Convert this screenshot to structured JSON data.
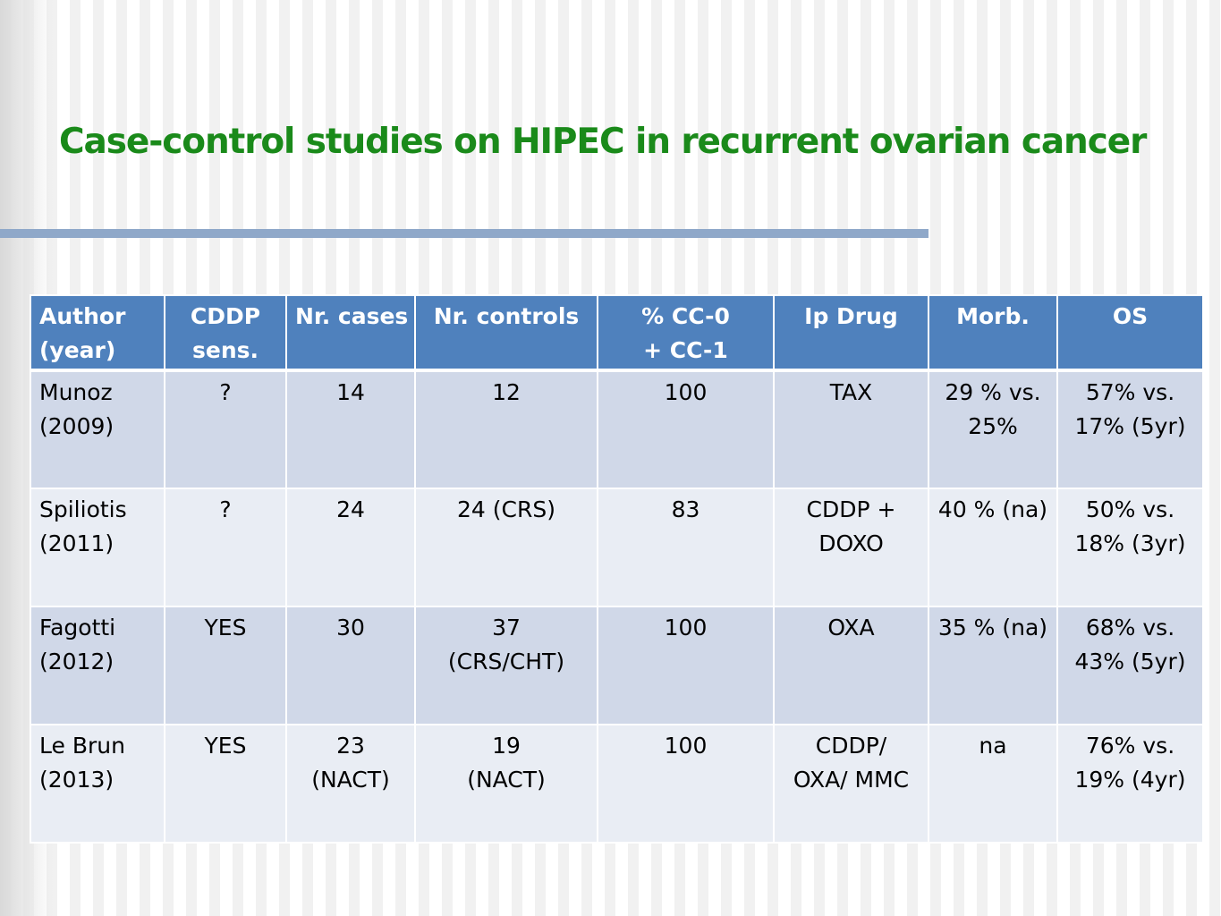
{
  "slide": {
    "title": "Case-control studies on HIPEC in recurrent ovarian cancer",
    "colors": {
      "title": "#1a8a1a",
      "header_bg": "#4f81bd",
      "row_odd_bg": "#d0d8e8",
      "row_even_bg": "#e9edf4",
      "rule": "#8fa8c9"
    }
  },
  "table": {
    "headers": [
      [
        "Author",
        "(year)"
      ],
      [
        "CDDP",
        "sens."
      ],
      [
        "Nr. cases"
      ],
      [
        "Nr. controls"
      ],
      [
        "% CC-0",
        "+ CC-1"
      ],
      [
        "Ip Drug"
      ],
      [
        "Morb."
      ],
      [
        "OS"
      ]
    ],
    "rows": [
      [
        [
          "Munoz",
          "(2009)"
        ],
        [
          "?"
        ],
        [
          "14"
        ],
        [
          "12"
        ],
        [
          "100"
        ],
        [
          "TAX"
        ],
        [
          "29 % vs.",
          "25%"
        ],
        [
          "57% vs.",
          "17% (5yr)"
        ]
      ],
      [
        [
          "Spiliotis",
          "(2011)"
        ],
        [
          "?"
        ],
        [
          "24"
        ],
        [
          "24 (CRS)"
        ],
        [
          "83"
        ],
        [
          "CDDP +",
          "DOXO"
        ],
        [
          "40 % (na)"
        ],
        [
          "50% vs.",
          "18% (3yr)"
        ]
      ],
      [
        [
          "Fagotti",
          "(2012)"
        ],
        [
          "YES"
        ],
        [
          "30"
        ],
        [
          "37",
          "(CRS/CHT)"
        ],
        [
          "100"
        ],
        [
          "OXA"
        ],
        [
          "35 % (na)"
        ],
        [
          "68% vs.",
          "43% (5yr)"
        ]
      ],
      [
        [
          "Le Brun",
          "(2013)"
        ],
        [
          "YES"
        ],
        [
          "23",
          "(NACT)"
        ],
        [
          "19",
          "(NACT)"
        ],
        [
          "100"
        ],
        [
          "CDDP/",
          "OXA/ MMC"
        ],
        [
          "na"
        ],
        [
          "76% vs.",
          "19% (4yr)"
        ]
      ]
    ]
  }
}
